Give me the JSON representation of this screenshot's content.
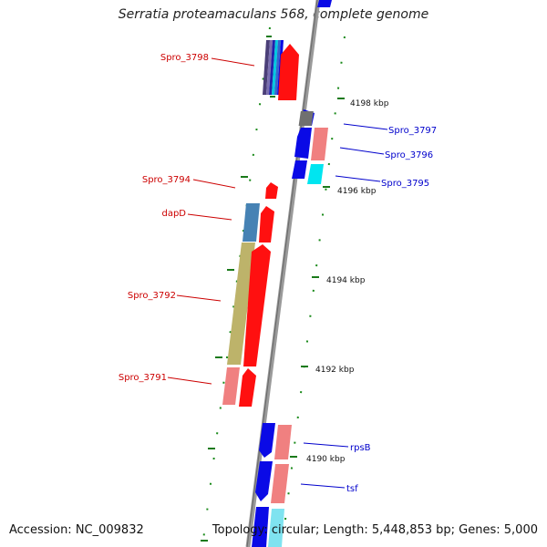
{
  "title": "Serratia proteamaculans 568, complete genome",
  "accession": "Accession: NC_009832",
  "summary": "Topology: circular; Length: 5,448,853 bp; Genes: 5,000",
  "ruler": [
    "4198 kbp",
    "4196 kbp",
    "4194 kbp",
    "4192 kbp",
    "4190 kbp"
  ],
  "left_genes": [
    "Spro_3798",
    "Spro_3794",
    "dapD",
    "Spro_3792",
    "Spro_3791"
  ],
  "right_genes": [
    "Spro_3797",
    "Spro_3796",
    "Spro_3795",
    "rpsB",
    "tsf"
  ],
  "colors": {
    "backbone": "#8a8a8a",
    "gene_red": "#ff0000",
    "gene_blue": "#0a0ae6",
    "ruler_dots": "#008000",
    "left_label": "#cc0000",
    "right_label": "#0000cc"
  }
}
